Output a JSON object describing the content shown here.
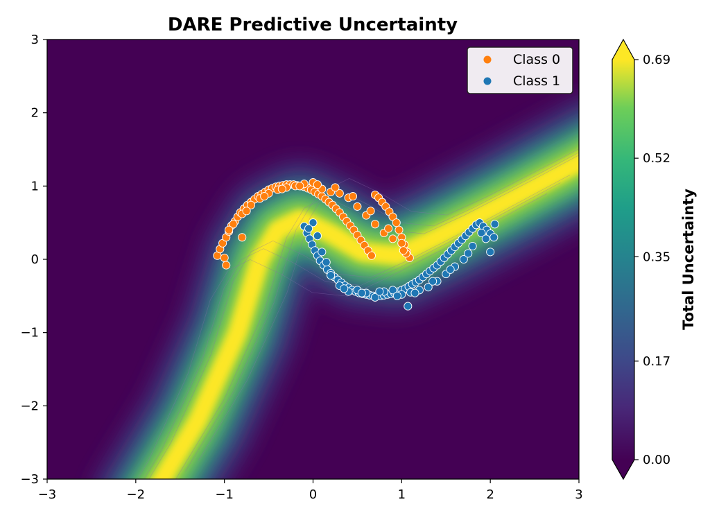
{
  "chart_data": {
    "type": "scatter",
    "title": "DARE Predictive Uncertainty",
    "xlabel": "",
    "ylabel": "",
    "xlim": [
      -3,
      3
    ],
    "ylim": [
      -3,
      3
    ],
    "x_ticks": [
      -3,
      -2,
      -1,
      0,
      1,
      2,
      3
    ],
    "y_ticks": [
      -3,
      -2,
      -1,
      0,
      1,
      2,
      3
    ],
    "x_tick_labels": [
      "−3",
      "−2",
      "−1",
      "0",
      "1",
      "2",
      "3"
    ],
    "y_tick_labels": [
      "−3",
      "−2",
      "−1",
      "0",
      "1",
      "2",
      "3"
    ],
    "grid": false,
    "legend_position": "top-right",
    "background": {
      "type": "filled-contour",
      "quantity": "Total Uncertainty",
      "colormap": "viridis",
      "range": [
        0.0,
        0.69
      ],
      "high_uncertainty_band": "decision boundary between the two classes"
    },
    "colorbar": {
      "label": "Total Uncertainty",
      "ticks": [
        0.0,
        0.17,
        0.35,
        0.52,
        0.69
      ],
      "tick_labels": [
        "0.00",
        "0.17",
        "0.35",
        "0.52",
        "0.69"
      ],
      "extend": "both"
    },
    "series": [
      {
        "name": "Class 0",
        "color": "#ff7f0e",
        "shape": "upper half-moon",
        "x": [
          -1.08,
          -1.05,
          -1.02,
          -0.98,
          -0.95,
          -0.92,
          -0.88,
          -0.85,
          -0.82,
          -0.78,
          -0.74,
          -0.7,
          -0.66,
          -0.62,
          -0.58,
          -0.54,
          -0.5,
          -0.46,
          -0.42,
          -0.38,
          -0.34,
          -0.3,
          -0.26,
          -0.22,
          -0.18,
          -0.14,
          -0.1,
          -0.06,
          -0.02,
          0.02,
          0.06,
          0.1,
          0.14,
          0.18,
          0.22,
          0.26,
          0.3,
          0.34,
          0.38,
          0.42,
          0.46,
          0.5,
          0.54,
          0.58,
          0.62,
          0.66,
          0.7,
          0.74,
          0.78,
          0.82,
          0.86,
          0.9,
          0.94,
          0.97,
          1.0,
          1.03,
          1.06,
          1.09,
          -1.0,
          -0.9,
          -0.8,
          -0.7,
          -0.6,
          -0.5,
          -0.4,
          -0.3,
          -0.2,
          -0.1,
          0.0,
          0.1,
          0.2,
          0.3,
          0.4,
          0.5,
          0.6,
          0.7,
          0.8,
          0.9,
          1.0,
          -0.95,
          -0.75,
          -0.55,
          -0.35,
          -0.15,
          0.05,
          0.25,
          0.45,
          0.65,
          0.85,
          1.05,
          -0.8,
          -0.98,
          1.02
        ],
        "y": [
          0.05,
          0.14,
          0.22,
          0.3,
          0.38,
          0.46,
          0.52,
          0.58,
          0.64,
          0.69,
          0.74,
          0.78,
          0.82,
          0.86,
          0.89,
          0.92,
          0.95,
          0.97,
          0.99,
          1.0,
          1.01,
          1.02,
          1.02,
          1.02,
          1.01,
          1.0,
          0.99,
          0.97,
          0.95,
          0.92,
          0.89,
          0.86,
          0.82,
          0.78,
          0.74,
          0.69,
          0.64,
          0.58,
          0.52,
          0.46,
          0.4,
          0.33,
          0.26,
          0.19,
          0.12,
          0.05,
          0.88,
          0.84,
          0.78,
          0.72,
          0.65,
          0.58,
          0.5,
          0.4,
          0.3,
          0.2,
          0.1,
          0.02,
          0.02,
          0.48,
          0.62,
          0.74,
          0.83,
          0.9,
          0.95,
          0.98,
          1.0,
          1.03,
          1.05,
          0.96,
          0.92,
          0.9,
          0.84,
          0.72,
          0.6,
          0.48,
          0.36,
          0.28,
          0.22,
          0.4,
          0.66,
          0.86,
          0.96,
          1.0,
          1.02,
          0.98,
          0.86,
          0.66,
          0.42,
          0.08,
          0.3,
          -0.08,
          0.12
        ]
      },
      {
        "name": "Class 1",
        "color": "#1f77b4",
        "shape": "lower half-moon",
        "x": [
          -0.1,
          -0.07,
          -0.04,
          -0.01,
          0.02,
          0.05,
          0.08,
          0.12,
          0.16,
          0.2,
          0.24,
          0.28,
          0.32,
          0.36,
          0.4,
          0.44,
          0.48,
          0.52,
          0.56,
          0.6,
          0.64,
          0.68,
          0.72,
          0.76,
          0.8,
          0.84,
          0.88,
          0.92,
          0.96,
          1.0,
          1.04,
          1.08,
          1.12,
          1.16,
          1.2,
          1.24,
          1.28,
          1.32,
          1.36,
          1.4,
          1.44,
          1.48,
          1.52,
          1.56,
          1.6,
          1.64,
          1.68,
          1.72,
          1.76,
          1.8,
          1.84,
          1.88,
          1.92,
          1.96,
          2.0,
          2.04,
          0.0,
          0.05,
          0.1,
          0.2,
          0.3,
          0.4,
          0.5,
          0.6,
          0.7,
          0.8,
          0.9,
          1.0,
          1.1,
          1.2,
          1.3,
          1.4,
          1.5,
          1.6,
          1.7,
          1.8,
          1.9,
          2.0,
          0.15,
          0.35,
          0.55,
          0.75,
          0.95,
          1.15,
          1.35,
          1.55,
          1.75,
          1.95,
          1.07,
          2.05,
          -0.05
        ],
        "y": [
          0.45,
          0.36,
          0.28,
          0.2,
          0.12,
          0.05,
          -0.02,
          -0.08,
          -0.14,
          -0.19,
          -0.24,
          -0.28,
          -0.32,
          -0.36,
          -0.39,
          -0.42,
          -0.44,
          -0.46,
          -0.47,
          -0.48,
          -0.49,
          -0.5,
          -0.5,
          -0.5,
          -0.49,
          -0.48,
          -0.47,
          -0.46,
          -0.44,
          -0.42,
          -0.4,
          -0.37,
          -0.34,
          -0.31,
          -0.28,
          -0.24,
          -0.2,
          -0.16,
          -0.12,
          -0.08,
          -0.03,
          0.02,
          0.07,
          0.12,
          0.17,
          0.22,
          0.27,
          0.32,
          0.37,
          0.42,
          0.47,
          0.5,
          0.45,
          0.4,
          0.35,
          0.3,
          0.5,
          0.32,
          0.1,
          -0.22,
          -0.36,
          -0.44,
          -0.42,
          -0.46,
          -0.52,
          -0.44,
          -0.42,
          -0.48,
          -0.45,
          -0.42,
          -0.38,
          -0.3,
          -0.2,
          -0.1,
          0.0,
          0.18,
          0.36,
          0.1,
          -0.04,
          -0.4,
          -0.46,
          -0.44,
          -0.5,
          -0.46,
          -0.3,
          -0.14,
          0.08,
          0.28,
          -0.64,
          0.48,
          0.42
        ]
      }
    ]
  }
}
